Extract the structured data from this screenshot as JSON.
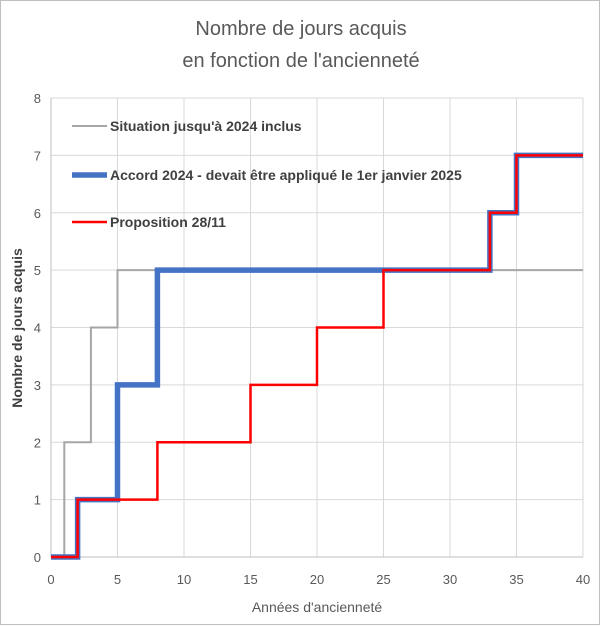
{
  "chart_data": {
    "type": "line",
    "title_lines": [
      "Nombre de jours acquis",
      "en fonction de l'ancienneté"
    ],
    "xlabel": "Années d'ancienneté",
    "ylabel": "Nombre de jours acquis",
    "xlim": [
      0,
      40
    ],
    "ylim": [
      0,
      8
    ],
    "xticks": [
      0,
      5,
      10,
      15,
      20,
      25,
      30,
      35,
      40
    ],
    "yticks": [
      0,
      1,
      2,
      3,
      4,
      5,
      6,
      7,
      8
    ],
    "grid": true,
    "legend_position": "top-left",
    "series": [
      {
        "name": "Situation jusqu'à 2024 inclus",
        "color": "#a6a6a6",
        "style": "thin",
        "points": [
          [
            0,
            0
          ],
          [
            1,
            0
          ],
          [
            1,
            2
          ],
          [
            3,
            2
          ],
          [
            3,
            4
          ],
          [
            5,
            4
          ],
          [
            5,
            5
          ],
          [
            40,
            5
          ]
        ]
      },
      {
        "name": "Accord 2024 - devait être appliqué le 1er janvier 2025",
        "color": "#4472c4",
        "style": "thick",
        "points": [
          [
            0,
            0
          ],
          [
            2,
            0
          ],
          [
            2,
            1
          ],
          [
            5,
            1
          ],
          [
            5,
            3
          ],
          [
            8,
            3
          ],
          [
            8,
            5
          ],
          [
            33,
            5
          ],
          [
            33,
            6
          ],
          [
            35,
            6
          ],
          [
            35,
            7
          ],
          [
            40,
            7
          ]
        ]
      },
      {
        "name": "Proposition 28/11",
        "color": "#ff0000",
        "style": "medium",
        "points": [
          [
            0,
            0
          ],
          [
            2,
            0
          ],
          [
            2,
            1
          ],
          [
            8,
            1
          ],
          [
            8,
            2
          ],
          [
            15,
            2
          ],
          [
            15,
            3
          ],
          [
            20,
            3
          ],
          [
            20,
            4
          ],
          [
            25,
            4
          ],
          [
            25,
            5
          ],
          [
            33,
            5
          ],
          [
            33,
            6
          ],
          [
            35,
            6
          ],
          [
            35,
            7
          ],
          [
            40,
            7
          ]
        ]
      }
    ]
  }
}
